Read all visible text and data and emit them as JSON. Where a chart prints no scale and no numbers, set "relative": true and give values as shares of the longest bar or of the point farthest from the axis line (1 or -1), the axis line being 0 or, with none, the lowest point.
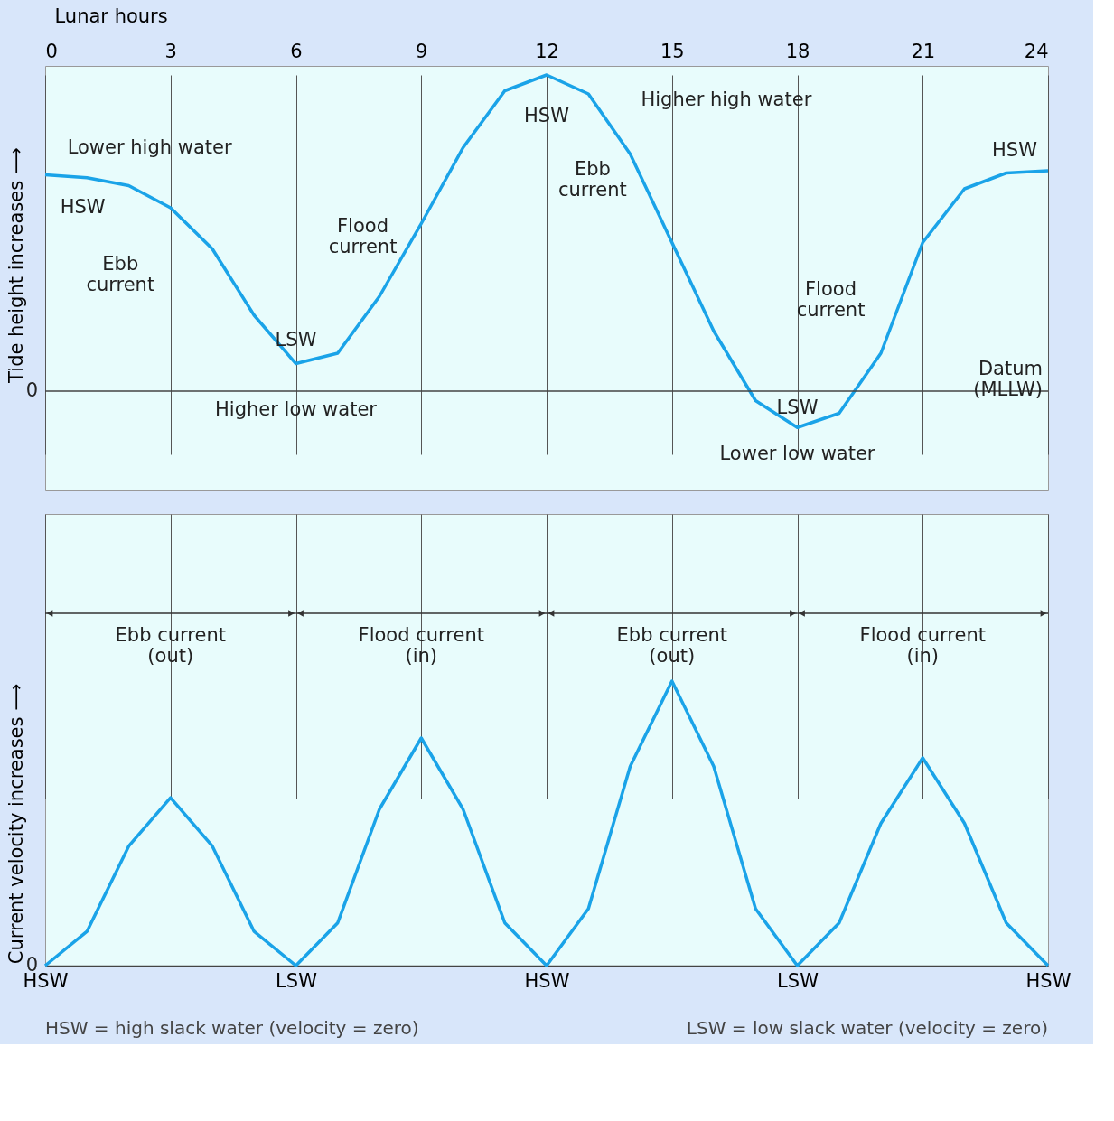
{
  "chart_data": [
    {
      "type": "line",
      "relative": true,
      "xlabel": "Lunar hours",
      "ylabel": "Tide height increases ⟶",
      "xlim": [
        0,
        24
      ],
      "xticks": [
        0,
        3,
        6,
        9,
        12,
        15,
        18,
        21,
        24
      ],
      "grid": "x",
      "tick_labels": "x",
      "x": [
        0,
        1,
        2,
        3,
        4,
        5,
        6,
        7,
        8,
        9,
        10,
        11,
        12,
        13,
        14,
        15,
        16,
        17,
        18,
        19,
        20,
        21,
        22,
        23,
        24
      ],
      "series": [
        {
          "color": "#1aa3e8",
          "values": [
            0.684,
            0.675,
            0.65,
            0.58,
            0.45,
            0.24,
            0.087,
            0.12,
            0.3,
            0.53,
            0.77,
            0.95,
            1.0,
            0.94,
            0.75,
            0.47,
            0.19,
            -0.03,
            -0.115,
            -0.07,
            0.12,
            0.47,
            0.64,
            0.69,
            0.697
          ]
        }
      ],
      "ref_lines": [
        {
          "axis": "y",
          "value": 0,
          "label": "Datum\n(MLLW)"
        }
      ],
      "annotations": [
        "0",
        "Lower high water",
        "HSW",
        "Ebb\ncurrent",
        "LSW",
        "Higher low water",
        "Flood\ncurrent",
        "HSW",
        "Higher high water",
        "Ebb\ncurrent",
        "LSW",
        "Lower low water",
        "Flood\ncurrent",
        "HSW"
      ]
    },
    {
      "type": "line",
      "relative": true,
      "ylabel": "Current velocity increases ⟶",
      "grid": "x",
      "tick_labels": "x",
      "categories": [
        "HSW",
        null,
        null,
        null,
        null,
        null,
        "LSW",
        null,
        null,
        null,
        null,
        null,
        "HSW",
        null,
        null,
        null,
        null,
        null,
        "LSW",
        null,
        null,
        null,
        null,
        null,
        "HSW"
      ],
      "series": [
        {
          "color": "#1aa3e8",
          "values": [
            0,
            0.12,
            0.42,
            0.59,
            0.42,
            0.12,
            0,
            0.15,
            0.55,
            0.8,
            0.55,
            0.15,
            0,
            0.2,
            0.7,
            1.0,
            0.7,
            0.2,
            0,
            0.15,
            0.5,
            0.73,
            0.5,
            0.15,
            0
          ]
        }
      ],
      "annotations": [
        "0",
        "Ebb current\n(out)",
        "Flood current\n(in)",
        "Ebb current\n(out)",
        "Flood current\n(in)",
        "HSW = high slack water (velocity = zero)",
        "LSW = low slack water (velocity = zero)"
      ]
    }
  ]
}
